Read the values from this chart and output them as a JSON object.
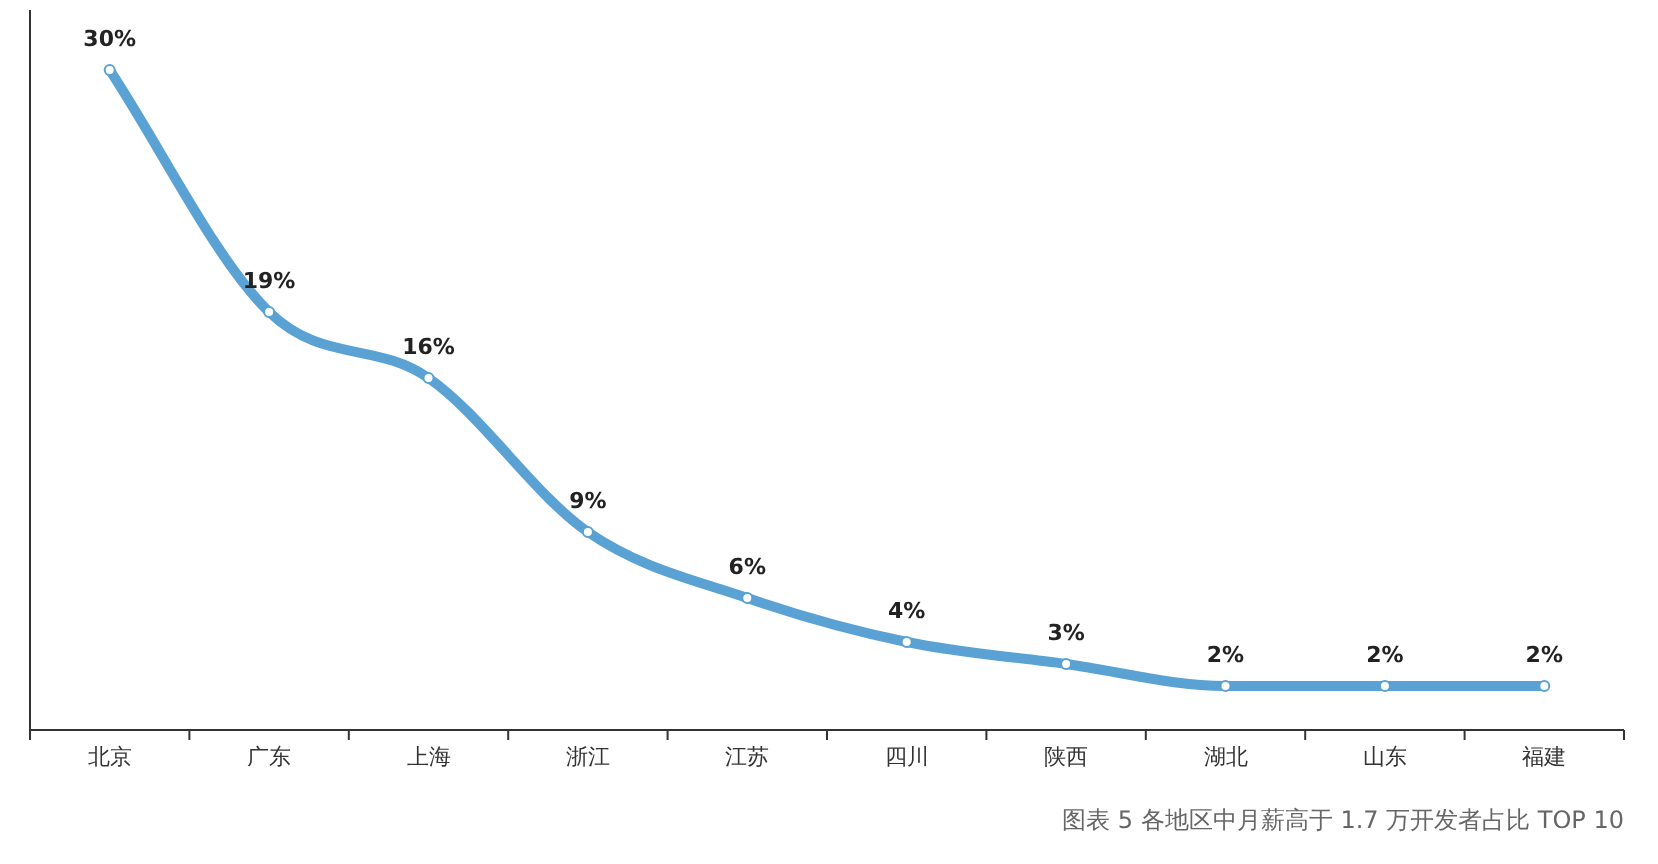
{
  "chart_data": {
    "type": "line",
    "categories": [
      "北京",
      "广东",
      "上海",
      "浙江",
      "江苏",
      "四川",
      "陕西",
      "湖北",
      "山东",
      "福建"
    ],
    "series": [
      {
        "color": "#5aa2d3",
        "values": [
          30,
          19,
          16,
          9,
          6,
          4,
          3,
          2,
          2,
          2
        ],
        "value_labels": [
          "30%",
          "19%",
          "16%",
          "9%",
          "6%",
          "4%",
          "3%",
          "2%",
          "2%",
          "2%"
        ]
      }
    ],
    "marker": "circle",
    "line_style": "solid",
    "tick_labels": "x",
    "annotations": [
      "图表 5  各地区中月薪高于 1.7 万开发者占比 TOP 10"
    ]
  }
}
